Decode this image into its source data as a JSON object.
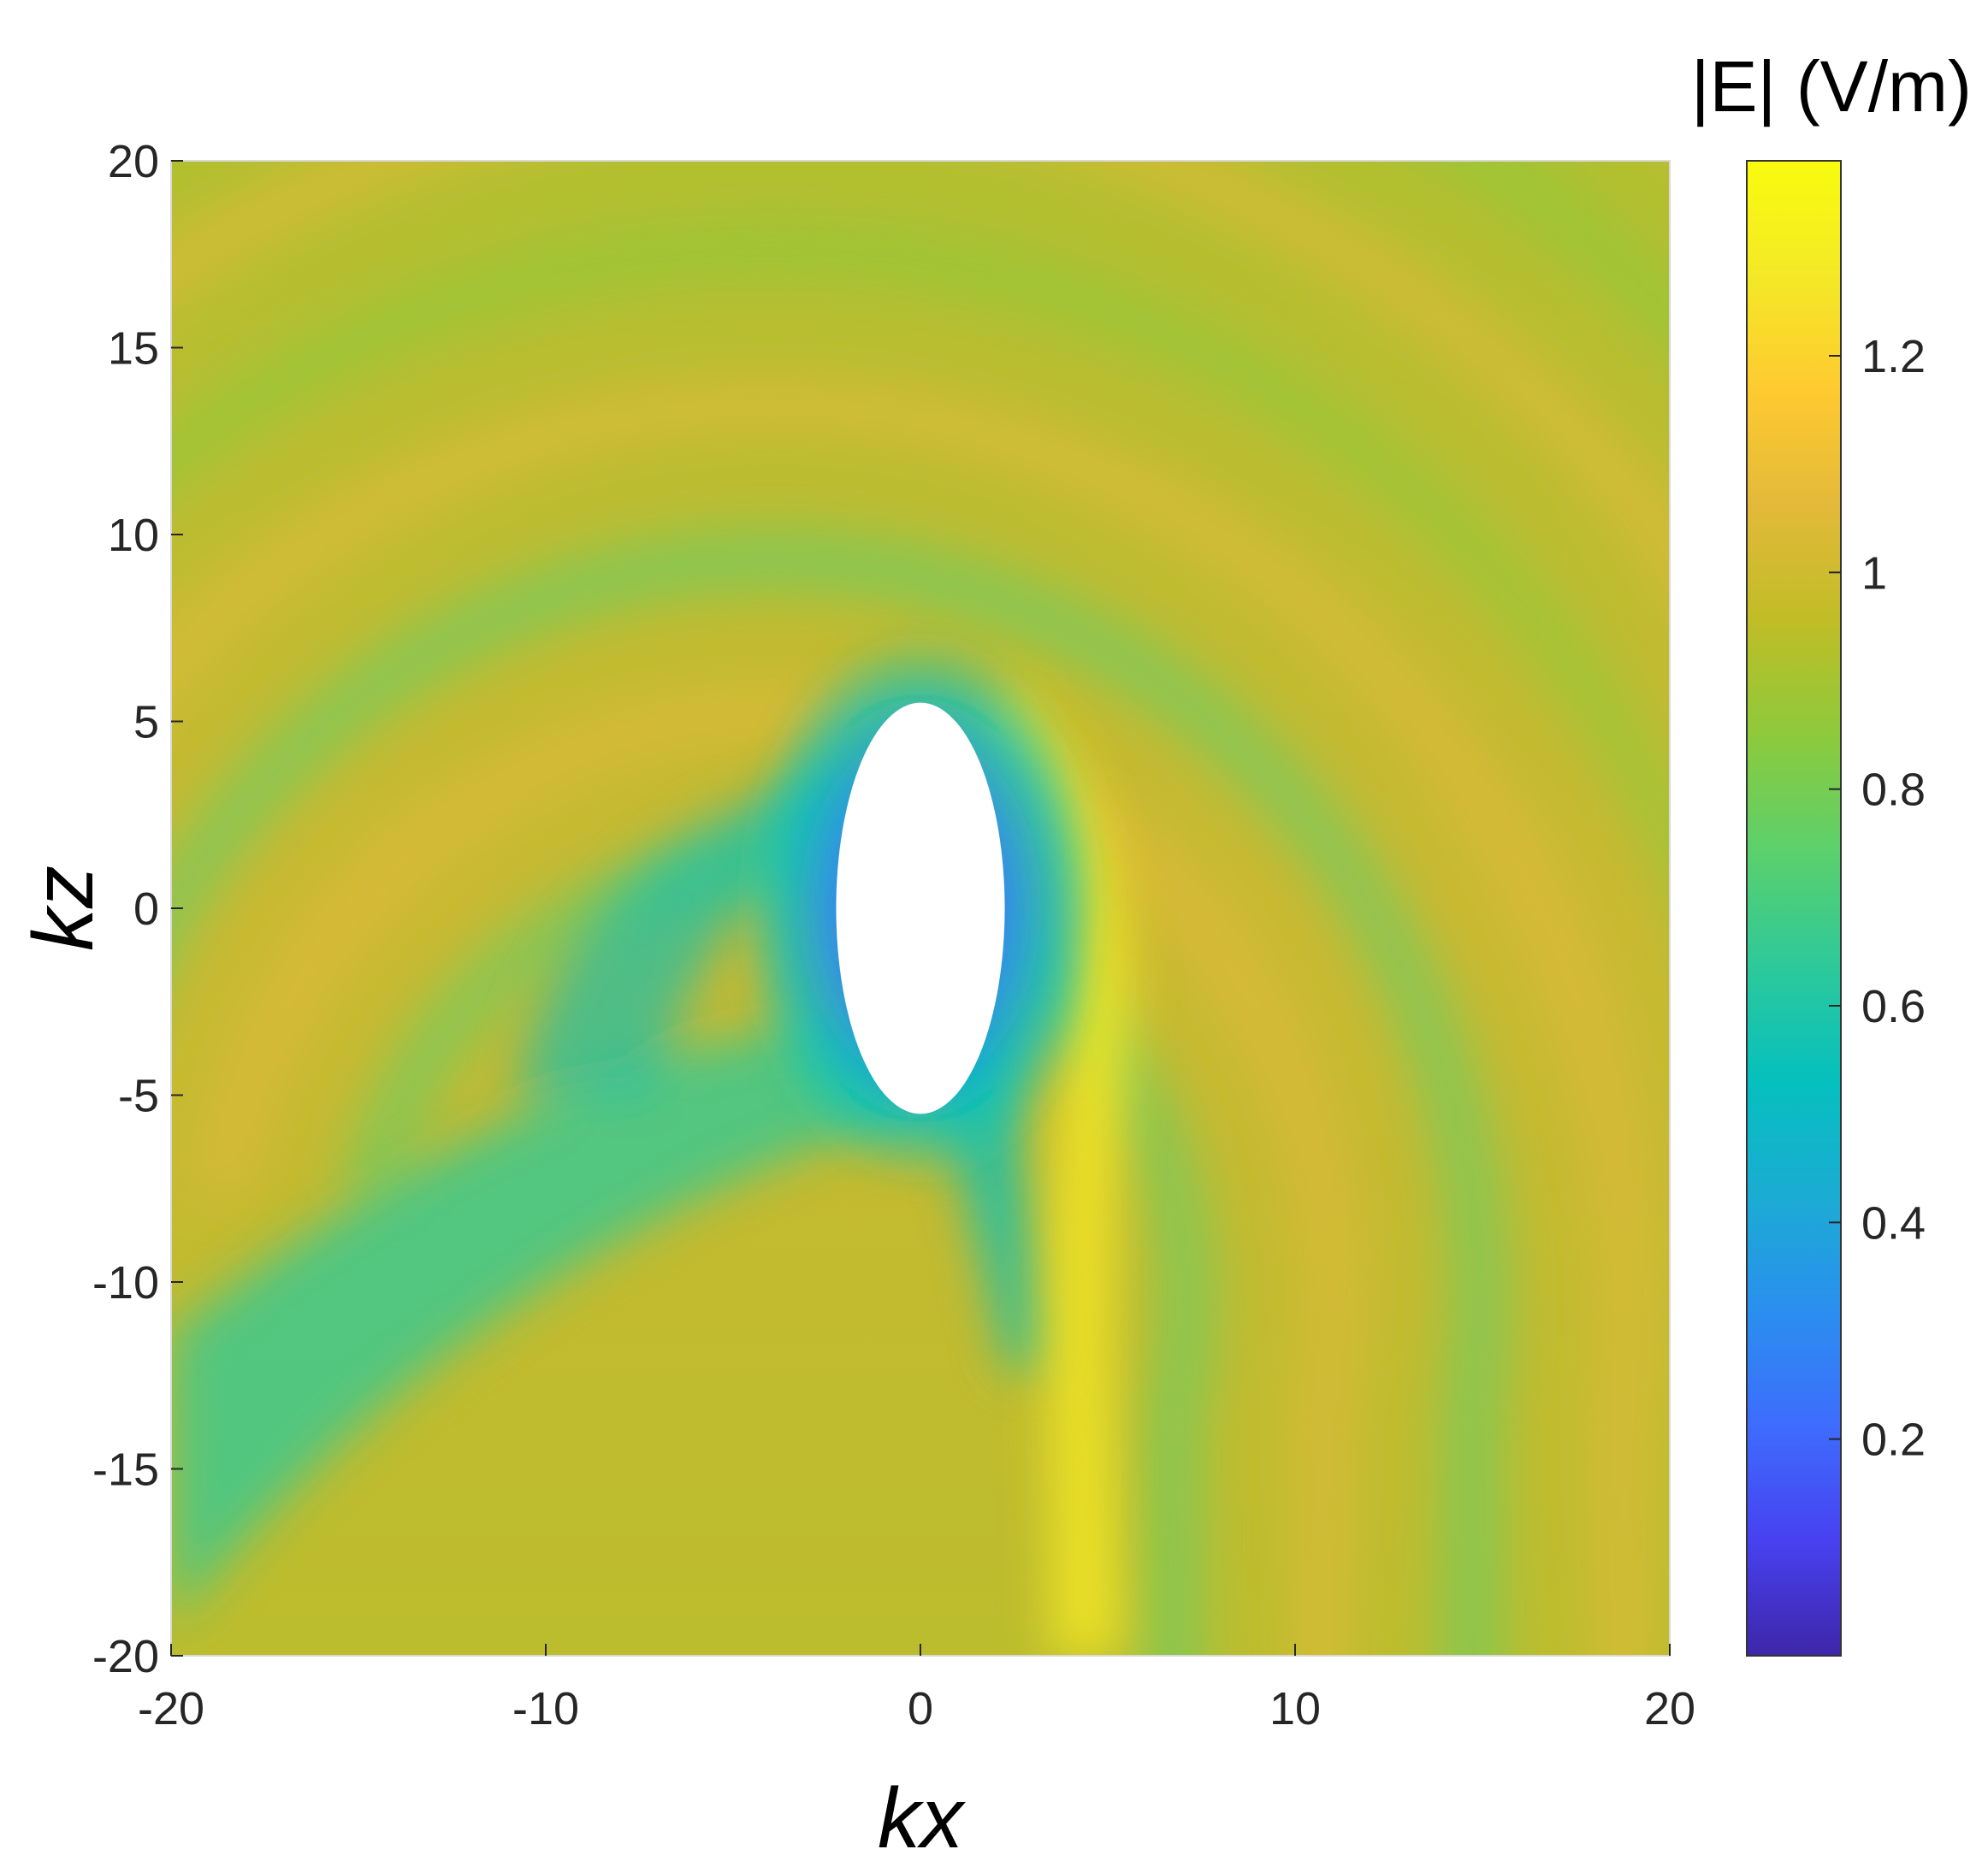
{
  "chart_data": {
    "type": "heatmap",
    "title": "",
    "xlabel": "kx",
    "ylabel": "kz",
    "xlim": [
      -20,
      20
    ],
    "ylim": [
      -20,
      20
    ],
    "x_ticks": [
      -20,
      -10,
      0,
      10,
      20
    ],
    "y_ticks": [
      20,
      15,
      10,
      5,
      0,
      -5,
      -10,
      -15,
      -20
    ],
    "colorbar": {
      "label": "|E| (V/m)",
      "range": [
        0,
        1.38
      ],
      "ticks": [
        0.2,
        0.4,
        0.6,
        0.8,
        1,
        1.2
      ],
      "colormap": "parula",
      "stops": [
        "#3e26a8",
        "#4741f0",
        "#3e6cfd",
        "#2a8fef",
        "#1bacd3",
        "#05c0be",
        "#2ec99a",
        "#5bd06c",
        "#8dca3c",
        "#c0bd26",
        "#e3b93a",
        "#feca30",
        "#f4e926",
        "#f9fb0e"
      ]
    },
    "obstacle": {
      "shape": "ellipse",
      "center": [
        0,
        0
      ],
      "semi_axis_x": 2.25,
      "semi_axis_z": 5.5,
      "fill": "#ffffff"
    },
    "grid": false
  }
}
